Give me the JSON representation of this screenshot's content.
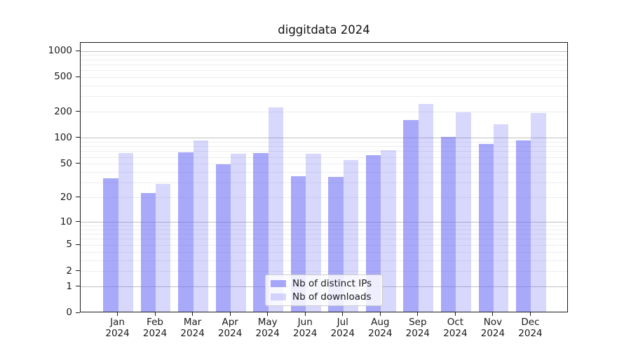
{
  "chart_data": {
    "type": "bar",
    "title": "diggitdata 2024",
    "xlabel": "",
    "ylabel": "",
    "x_months": [
      "Jan",
      "Feb",
      "Mar",
      "Apr",
      "May",
      "Jun",
      "Jul",
      "Aug",
      "Sep",
      "Oct",
      "Nov",
      "Dec"
    ],
    "x_year": "2024",
    "series": [
      {
        "name": "Nb of distinct IPs",
        "color": "rgba(106,106,245,0.58)",
        "values": [
          33,
          22,
          66,
          48,
          65,
          35,
          34,
          61,
          155,
          100,
          82,
          91
        ]
      },
      {
        "name": "Nb of downloads",
        "color": "rgba(106,106,245,0.26)",
        "values": [
          65,
          28,
          90,
          64,
          220,
          64,
          54,
          70,
          240,
          190,
          140,
          188
        ]
      }
    ],
    "y_axis": {
      "scale": "log1p",
      "tick_values": [
        0,
        1,
        2,
        5,
        10,
        20,
        50,
        100,
        200,
        500,
        1000
      ],
      "tick_labels": [
        "0",
        "1",
        "2",
        "5",
        "10",
        "20",
        "50",
        "100",
        "200",
        "500",
        "1000"
      ],
      "major_grid_values": [
        1,
        10,
        100,
        1000
      ],
      "ymax": 1250
    },
    "grid": {
      "major_color": "#c0c0c0",
      "minor_color": "#ededed"
    },
    "legend_position": "lower center",
    "spine_color": "#1a1a1a",
    "text_color": "#1a1a1a"
  }
}
